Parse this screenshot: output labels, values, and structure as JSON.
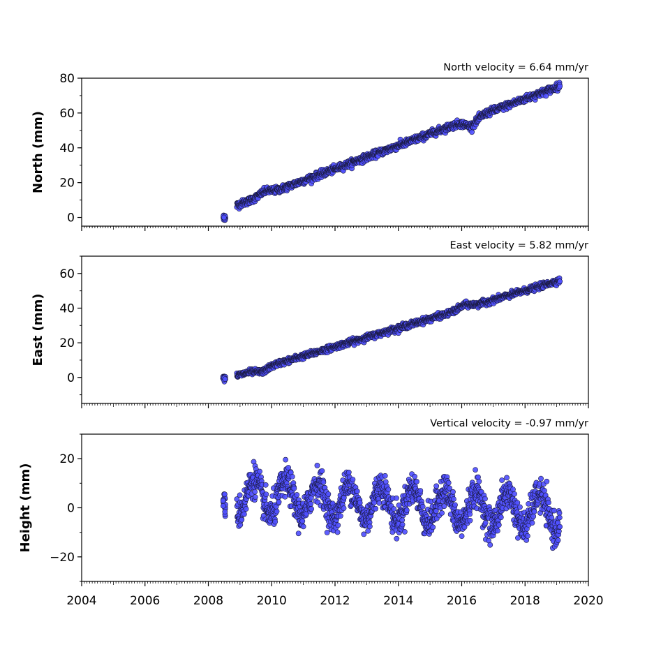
{
  "chart_data": [
    {
      "type": "scatter",
      "title": "North velocity = 6.64 mm/yr",
      "xlabel": "",
      "ylabel": "North (mm)",
      "xlim": [
        2004,
        2020
      ],
      "ylim": [
        -5,
        80
      ],
      "yticks": [
        0,
        20,
        40,
        60,
        80
      ],
      "xticks": [
        2004,
        2006,
        2008,
        2010,
        2012,
        2014,
        2016,
        2018,
        2020
      ],
      "show_xtick_labels": false,
      "grid": false,
      "marker_color": "#5050ff",
      "edge_color": "#1a1a40",
      "trend": {
        "x0": 2008.9,
        "y0": 7,
        "x1": 2019.1,
        "y1": 75.5,
        "noise": 1.6
      },
      "outlier_clusters": [
        {
          "x": 2008.5,
          "y": 0,
          "spread": 1.6
        }
      ],
      "wiggle": [
        {
          "x": 2016.3,
          "dy": -4
        },
        {
          "x": 2009.8,
          "dy": 2
        }
      ]
    },
    {
      "type": "scatter",
      "title": "East velocity = 5.82 mm/yr",
      "xlabel": "",
      "ylabel": "East (mm)",
      "xlim": [
        2004,
        2020
      ],
      "ylim": [
        -15,
        70
      ],
      "yticks": [
        0,
        20,
        40,
        60
      ],
      "xticks": [
        2004,
        2006,
        2008,
        2010,
        2012,
        2014,
        2016,
        2018,
        2020
      ],
      "show_xtick_labels": false,
      "grid": false,
      "marker_color": "#5050ff",
      "edge_color": "#1a1a40",
      "trend": {
        "x0": 2008.9,
        "y0": 1,
        "x1": 2019.1,
        "y1": 56,
        "noise": 1.3
      },
      "outlier_clusters": [
        {
          "x": 2008.5,
          "y": 0,
          "spread": 1.2
        }
      ],
      "wiggle": [
        {
          "x": 2009.7,
          "dy": -2
        },
        {
          "x": 2016.1,
          "dy": 2
        }
      ]
    },
    {
      "type": "scatter",
      "title": "Vertical velocity = -0.97 mm/yr",
      "xlabel": "",
      "ylabel": "Height (mm)",
      "xlim": [
        2004,
        2020
      ],
      "ylim": [
        -30,
        30
      ],
      "yticks": [
        -20,
        0,
        20
      ],
      "xticks": [
        2004,
        2006,
        2008,
        2010,
        2012,
        2014,
        2016,
        2018,
        2020
      ],
      "show_xtick_labels": true,
      "grid": false,
      "marker_color": "#5050ff",
      "edge_color": "#1a1a40",
      "trend": {
        "x0": 2008.9,
        "y0": 5,
        "x1": 2019.1,
        "y1": -2,
        "noise": 5.5,
        "seasonal_amp": 7
      },
      "outlier_clusters": [
        {
          "x": 2008.5,
          "y": 1,
          "spread": 4
        }
      ],
      "wiggle": []
    }
  ]
}
